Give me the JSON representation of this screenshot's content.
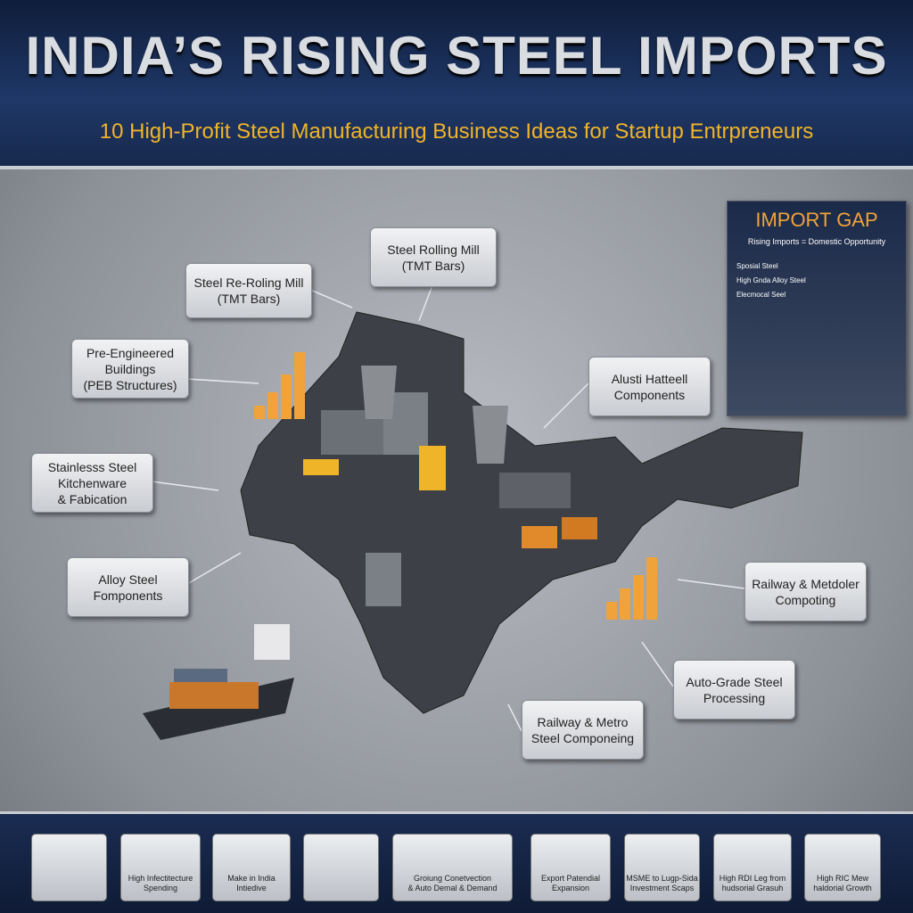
{
  "header": {
    "title": "INDIA’S RISING STEEL IMPORTS",
    "subtitle": "10 High-Profit Steel Manufacturing Business Ideas for Startup Entrpreneurs"
  },
  "callouts": [
    {
      "lines": [
        "Steel Re-Roling Mill",
        "(TMT Bars)"
      ]
    },
    {
      "lines": [
        "Steel Rolling Mill",
        "(TMT Bars)"
      ]
    },
    {
      "lines": [
        "Pre-Engineered",
        "Buildings",
        "(PEB Structures)"
      ]
    },
    {
      "lines": [
        "Stainlesss Steel",
        "Kitchenware",
        "& Fabication"
      ]
    },
    {
      "lines": [
        "Alloy Steel",
        "Fomponents"
      ]
    },
    {
      "lines": [
        "Alusti Hatteell",
        "Components"
      ]
    },
    {
      "lines": [
        "Railway & Metdoler",
        "Compoting"
      ]
    },
    {
      "lines": [
        "Auto-Grade Steel",
        "Processing"
      ]
    },
    {
      "lines": [
        "Railway & Metro",
        "Steel Componeing"
      ]
    }
  ],
  "import_gap": {
    "title": "IMPORT GAP",
    "subtitle": "Rising Imports = Domestic Opportunity",
    "items": [
      "Sposial Steel",
      "High Gnda Alloy Steel",
      "Elecmocal Seel"
    ]
  },
  "footer": [
    {
      "lines": [
        "High Infectitecture",
        "Spending"
      ]
    },
    {
      "lines": [
        "Make in India",
        "Intiedive"
      ]
    },
    {
      "lines": [
        "Groiung Conetvection",
        "& Auto Demal & Demand"
      ]
    },
    {
      "lines": [
        "Export Patendial",
        "Expansion"
      ]
    },
    {
      "lines": [
        "MSME to Lugp-Sida",
        "Investment Scaps"
      ]
    },
    {
      "lines": [
        "High RDI Leg from",
        "hudsorial Grasuh"
      ]
    },
    {
      "lines": [
        "High RIC Mew",
        "haldorial Growth"
      ]
    }
  ]
}
